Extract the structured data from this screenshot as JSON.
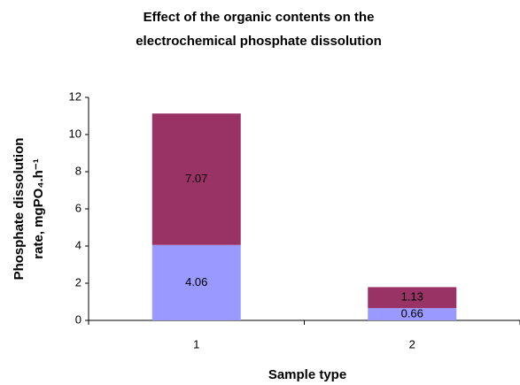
{
  "chart_data": {
    "type": "stacked-bar",
    "title": [
      "Effect of the organic contents on the",
      "electrochemical phosphate dissolution"
    ],
    "x_label": "Sample type",
    "y_label": [
      "Phosphate dissolution",
      "rate, mgPO₄.h⁻¹"
    ],
    "categories": [
      "1",
      "2"
    ],
    "series": [
      {
        "color": "#9999ff",
        "values": [
          4.06,
          0.66
        ]
      },
      {
        "color": "#993366",
        "values": [
          7.07,
          1.13
        ]
      }
    ],
    "ylim": [
      0,
      12
    ],
    "yticks": [
      0,
      2,
      4,
      6,
      8,
      10,
      12
    ],
    "grid": false
  }
}
